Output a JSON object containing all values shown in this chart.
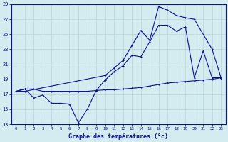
{
  "bg_color": "#d4ecef",
  "line_color": "#0c0c9e",
  "grid_color": "#b8d4d8",
  "xlabel": "Graphe des températures (°c)",
  "xlim": [
    -0.5,
    23.5
  ],
  "ylim": [
    13,
    29
  ],
  "yticks": [
    13,
    15,
    17,
    19,
    21,
    23,
    25,
    27,
    29
  ],
  "xticks": [
    0,
    1,
    2,
    3,
    4,
    5,
    6,
    7,
    8,
    9,
    10,
    11,
    12,
    13,
    14,
    15,
    16,
    17,
    18,
    19,
    20,
    21,
    22,
    23
  ],
  "line1_x": [
    0,
    1,
    2,
    3,
    4,
    5,
    6,
    7,
    8,
    9,
    10,
    11,
    12,
    13,
    14,
    15,
    16,
    17,
    18,
    19,
    20,
    21,
    22,
    23
  ],
  "line1_y": [
    17.4,
    17.7,
    17.7,
    17.4,
    17.4,
    17.4,
    17.4,
    17.4,
    17.4,
    17.5,
    17.6,
    17.6,
    17.7,
    17.8,
    17.9,
    18.1,
    18.3,
    18.5,
    18.6,
    18.7,
    18.8,
    18.9,
    19.0,
    19.2
  ],
  "line2_x": [
    0,
    1,
    2,
    3,
    4,
    5,
    6,
    7,
    8,
    9,
    10,
    11,
    12,
    13,
    14,
    15,
    16,
    17,
    18,
    19,
    20,
    21,
    22,
    23
  ],
  "line2_y": [
    17.4,
    17.7,
    16.5,
    16.9,
    15.8,
    15.8,
    15.7,
    13.2,
    15.0,
    17.5,
    18.9,
    20.0,
    20.8,
    22.2,
    22.0,
    24.0,
    26.2,
    26.2,
    25.4,
    26.0,
    19.2,
    22.8,
    19.2,
    19.2
  ],
  "line3_x": [
    0,
    1,
    10,
    11,
    12,
    13,
    14,
    15,
    16,
    17,
    18,
    19,
    20,
    22,
    23
  ],
  "line3_y": [
    17.4,
    17.4,
    19.5,
    20.5,
    21.5,
    23.5,
    25.5,
    24.2,
    28.7,
    28.2,
    27.5,
    27.2,
    27.0,
    23.0,
    19.2
  ]
}
